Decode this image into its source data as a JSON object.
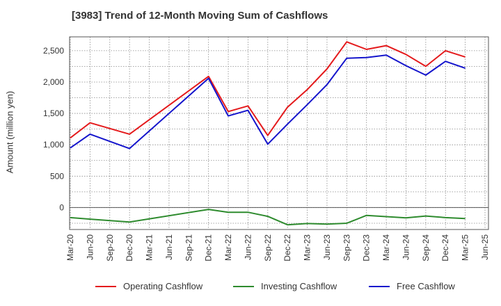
{
  "chart_data": {
    "type": "line",
    "title": "[3983]  Trend of 12-Month Moving Sum of Cashflows",
    "xlabel": "",
    "ylabel": "Amount (million yen)",
    "ylim": [
      -350,
      2720
    ],
    "yticks": [
      0,
      500,
      1000,
      1500,
      2000,
      2500
    ],
    "ytick_labels": [
      "0",
      "500",
      "1,000",
      "1,500",
      "2,000",
      "2,500"
    ],
    "x_tick_labels": [
      "Mar-20",
      "Jun-20",
      "Sep-20",
      "Dec-20",
      "Mar-21",
      "Jun-21",
      "Sep-21",
      "Dec-21",
      "Mar-22",
      "Jun-22",
      "Sep-22",
      "Dec-22",
      "Mar-23",
      "Jun-23",
      "Sep-23",
      "Dec-23",
      "Mar-24",
      "Jun-24",
      "Sep-24",
      "Dec-24",
      "Mar-25",
      "Jun-25"
    ],
    "categories": [
      "Mar-20",
      "Jun-20",
      "Dec-20",
      "Dec-21",
      "Mar-22",
      "Jun-22",
      "Sep-22",
      "Dec-22",
      "Mar-23",
      "Jun-23",
      "Sep-23",
      "Dec-23",
      "Mar-24",
      "Jun-24",
      "Sep-24",
      "Dec-24",
      "Mar-25"
    ],
    "grid": true,
    "legend_position": "bottom",
    "series": [
      {
        "name": "Operating Cashflow",
        "color": "#e41a1c",
        "values": [
          1110,
          1350,
          1170,
          2090,
          1530,
          1620,
          1150,
          1600,
          1880,
          2210,
          2640,
          2520,
          2580,
          2440,
          2250,
          2500,
          2400
        ]
      },
      {
        "name": "Investing Cashflow",
        "color": "#2e8b2e",
        "values": [
          -160,
          -185,
          -230,
          -30,
          -75,
          -75,
          -140,
          -275,
          -255,
          -265,
          -250,
          -125,
          -145,
          -165,
          -135,
          -160,
          -175
        ]
      },
      {
        "name": "Free Cashflow",
        "color": "#1515cc",
        "values": [
          950,
          1170,
          940,
          2060,
          1460,
          1550,
          1010,
          1330,
          1640,
          1960,
          2380,
          2390,
          2430,
          2260,
          2110,
          2330,
          2220
        ]
      }
    ]
  }
}
